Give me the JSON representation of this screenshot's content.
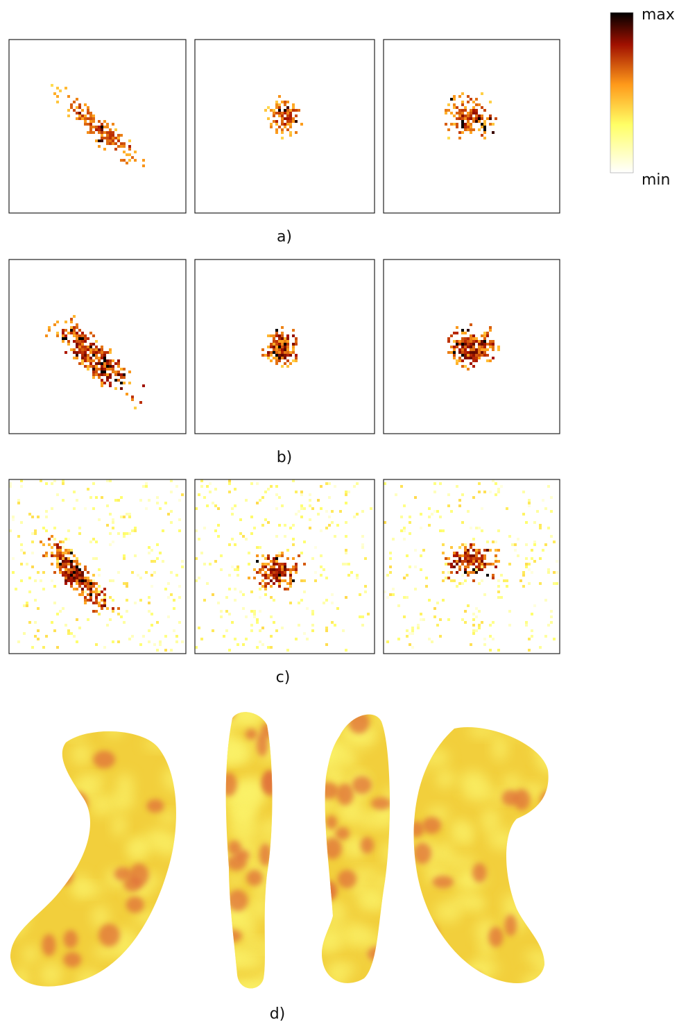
{
  "colorbar": {
    "max": "max",
    "min": "min"
  },
  "panels": [
    {
      "label": "a)"
    },
    {
      "label": "b)"
    },
    {
      "label": "c)"
    },
    {
      "label": "d)"
    }
  ]
}
